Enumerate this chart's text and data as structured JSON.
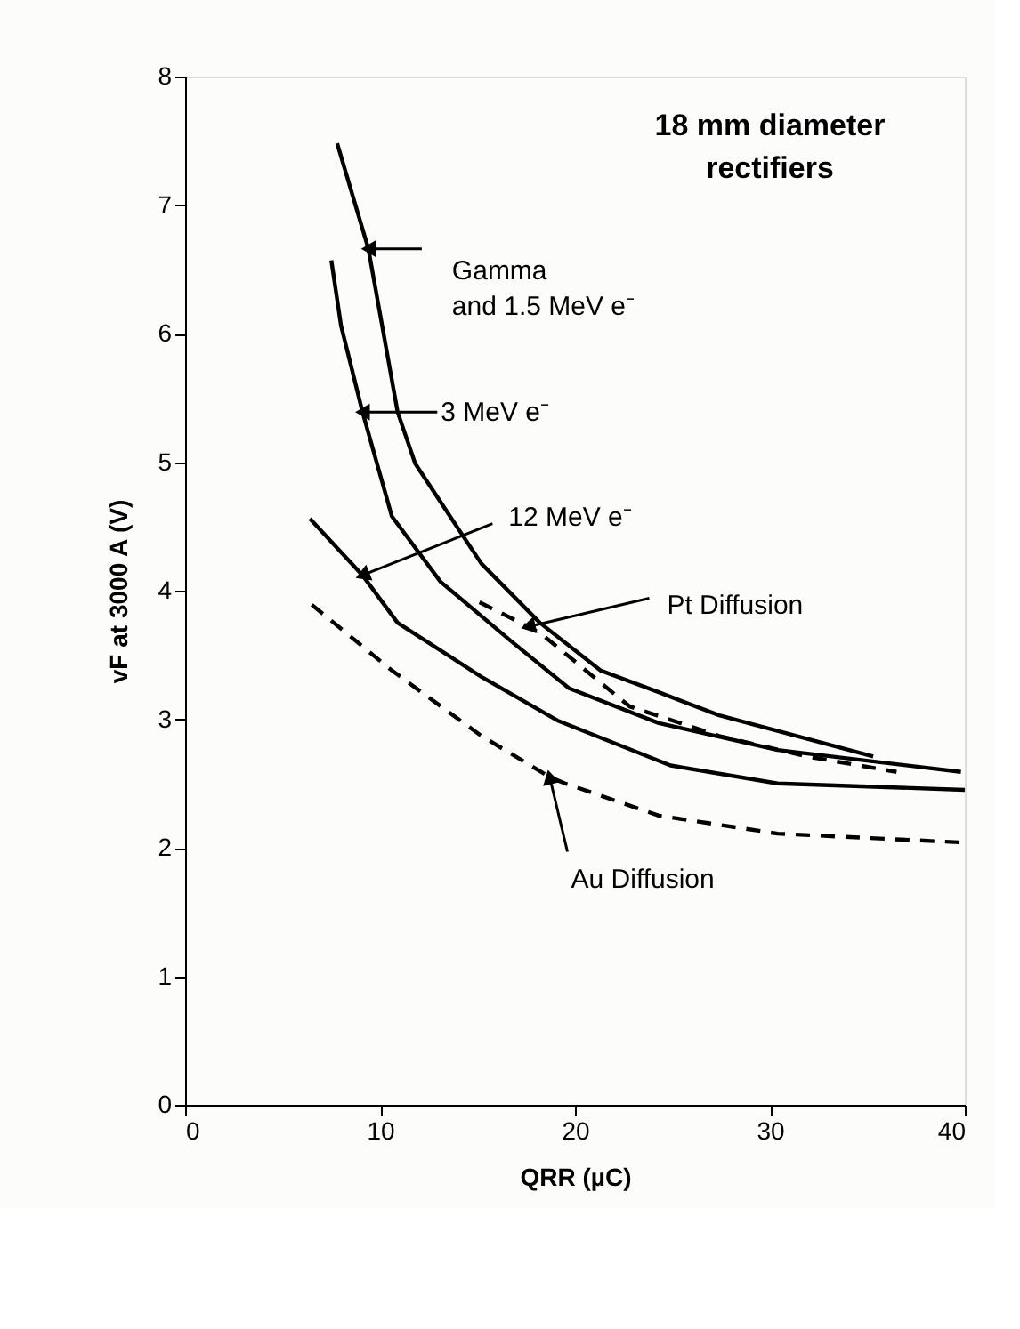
{
  "chart_data": {
    "type": "line",
    "title": "18 mm diameter\nrectifiers",
    "xlabel": "QRR (µC)",
    "ylabel": "vF at 3000 A (V)",
    "xlim": [
      0,
      40
    ],
    "xticks": [
      0,
      10,
      20,
      30,
      40
    ],
    "ylim": [
      0,
      8
    ],
    "yticks": [
      0,
      1,
      2,
      3,
      4,
      5,
      6,
      7,
      8
    ],
    "grid": false,
    "marker": "none",
    "series": [
      {
        "color": "#000000",
        "line_style": "solid",
        "x": [
          7.8,
          9.4,
          10.9,
          11.8,
          15.2,
          18.2,
          21.3,
          24.3,
          27.4,
          35.3
        ],
        "values": [
          7.48,
          6.66,
          5.39,
          4.99,
          4.21,
          3.75,
          3.38,
          3.21,
          3.03,
          2.71
        ]
      },
      {
        "color": "#000000",
        "line_style": "solid",
        "x": [
          7.5,
          8.0,
          9.1,
          10.6,
          13.1,
          16.7,
          19.7,
          24.3,
          30.4,
          39.8
        ],
        "values": [
          6.57,
          6.06,
          5.39,
          4.58,
          4.07,
          3.61,
          3.24,
          2.97,
          2.76,
          2.59
        ]
      },
      {
        "color": "#000000",
        "line_style": "solid",
        "x": [
          6.4,
          9.1,
          10.9,
          15.2,
          19.1,
          24.9,
          30.4,
          40
        ],
        "values": [
          4.56,
          4.12,
          3.75,
          3.33,
          2.99,
          2.64,
          2.5,
          2.45
        ]
      },
      {
        "color": "#000000",
        "line_style": "dashed",
        "x": [
          15.1,
          17.6,
          18.3,
          22.8,
          27.4,
          31.9,
          36.5
        ],
        "values": [
          3.91,
          3.72,
          3.66,
          3.1,
          2.87,
          2.71,
          2.59
        ]
      },
      {
        "color": "#000000",
        "line_style": "dashed",
        "x": [
          6.5,
          10.6,
          15.2,
          18.7,
          19.5,
          24.3,
          30.4,
          40
        ],
        "values": [
          3.89,
          3.38,
          2.87,
          2.55,
          2.5,
          2.25,
          2.11,
          2.04
        ]
      }
    ],
    "annotations": [
      {
        "text": "Gamma\nand 1.5 MeV e⁻",
        "x": 9.4,
        "y": 6.66
      },
      {
        "text": "3 MeV e⁻",
        "x": 9.1,
        "y": 5.39
      },
      {
        "text": "12 MeV e⁻",
        "x": 9.1,
        "y": 4.12
      },
      {
        "text": "Pt Diffusion",
        "x": 17.6,
        "y": 3.72
      },
      {
        "text": "Au Diffusion",
        "x": 18.7,
        "y": 2.55
      }
    ]
  }
}
